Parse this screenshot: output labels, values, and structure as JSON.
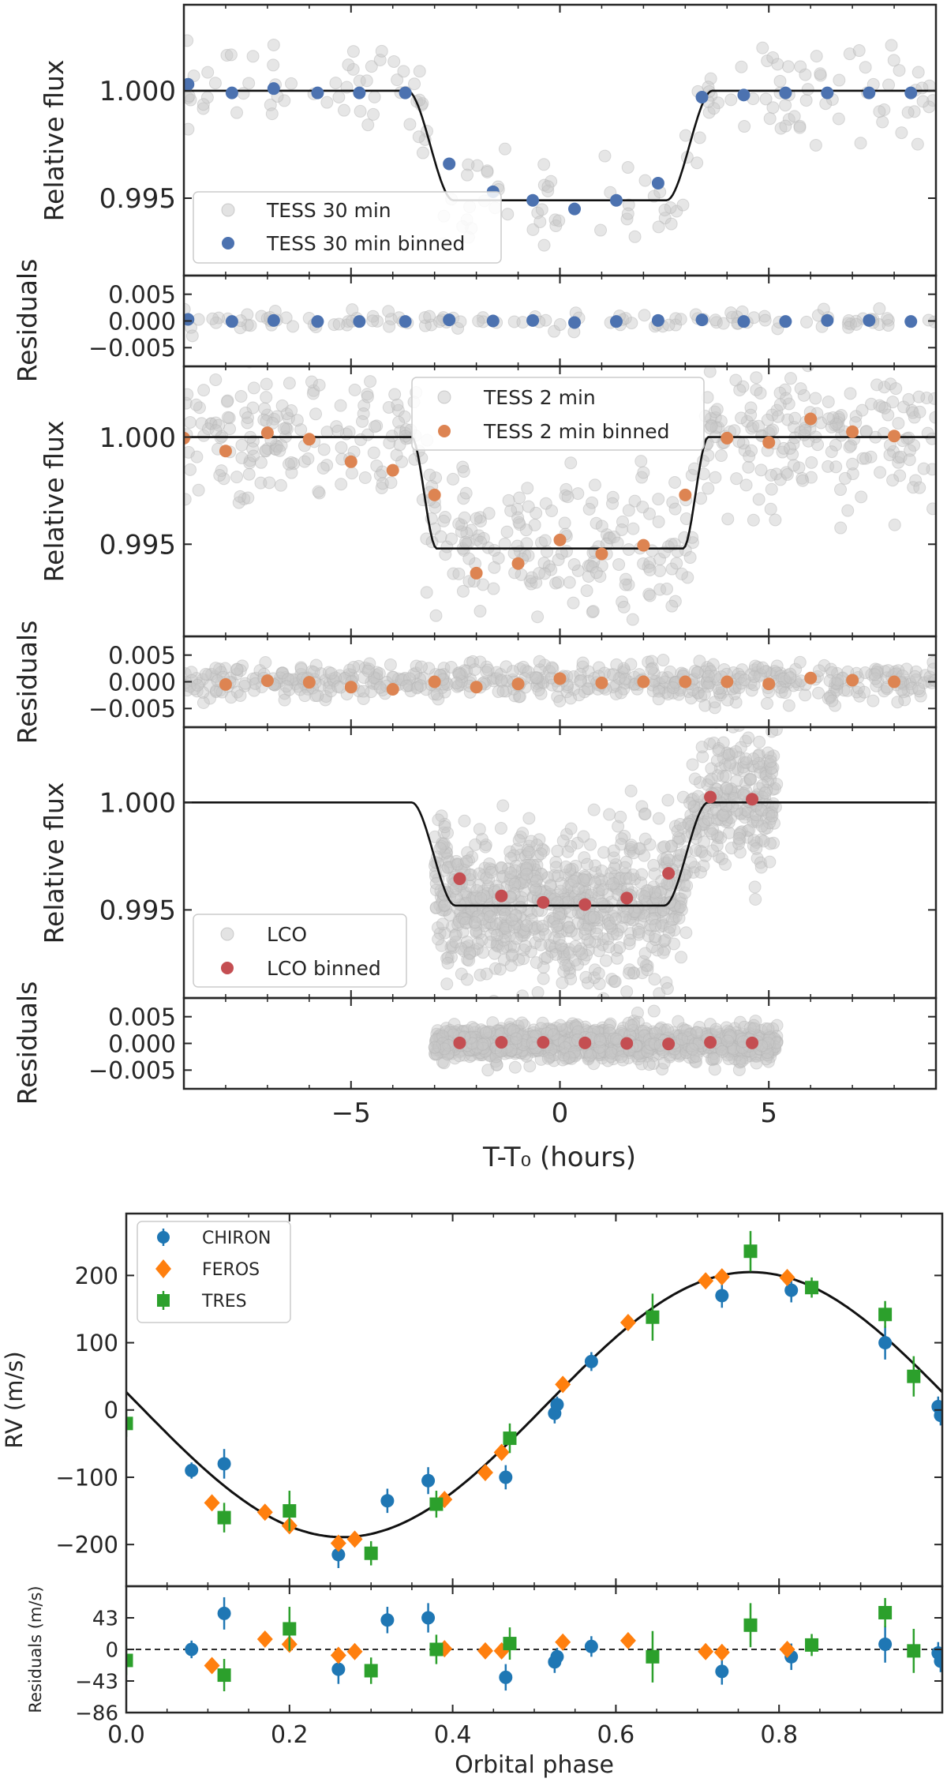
{
  "colors": {
    "tess30": "#4c72b0",
    "tess2": "#dd8452",
    "lco": "#c44e52",
    "raw": "#c8c8c8",
    "chiron": "#1f77b4",
    "feros": "#ff7f0e",
    "tres": "#2ca02c",
    "model": "#111111",
    "axis": "#262626"
  },
  "chart_data": [
    {
      "type": "scatter",
      "id": "tess30-lc",
      "ylabel": "Relative flux",
      "xlim": [
        -9,
        9
      ],
      "ylim": [
        0.9914,
        1.004
      ],
      "ytick_values": [
        0.995,
        1.0
      ],
      "ytick_labels": [
        "0.995",
        "1.000"
      ],
      "model": {
        "depth": 0.0051,
        "t1": 3.65,
        "t2": 2.55
      },
      "raw": {
        "name": "TESS 30 min",
        "count": 180,
        "noise": 0.0011,
        "xrange": [
          -9,
          9
        ]
      },
      "binned": {
        "name": "TESS 30 min binned",
        "x": [
          -8.9,
          -7.85,
          -6.85,
          -5.8,
          -4.8,
          -3.7,
          -2.65,
          -1.6,
          -0.65,
          0.35,
          1.35,
          2.35,
          3.4,
          4.4,
          5.4,
          6.4,
          7.4,
          8.4
        ],
        "y": [
          1.0003,
          0.9999,
          1.0001,
          0.9999,
          0.9999,
          0.9999,
          0.9966,
          0.9953,
          0.9949,
          0.9945,
          0.9949,
          0.9957,
          0.9997,
          0.9998,
          0.9999,
          0.9999,
          0.9999,
          0.9999
        ]
      },
      "legend": {
        "position": "lower-left",
        "entries": [
          "TESS 30 min",
          "TESS 30 min binned"
        ]
      }
    },
    {
      "type": "scatter",
      "id": "tess30-res",
      "ylabel": "Residuals",
      "xlim": [
        -9,
        9
      ],
      "ylim": [
        -0.0085,
        0.0085
      ],
      "ytick_values": [
        -0.005,
        0.0,
        0.005
      ],
      "ytick_labels": [
        "−0.005",
        "0.000",
        "0.005"
      ],
      "raw": {
        "count": 120,
        "noise": 0.0008
      },
      "binned": {
        "x": [
          -8.9,
          -7.85,
          -6.85,
          -5.8,
          -4.8,
          -3.7,
          -2.65,
          -1.6,
          -0.65,
          0.35,
          1.35,
          2.35,
          3.4,
          4.4,
          5.4,
          6.4,
          7.4,
          8.4
        ],
        "y": [
          0.0003,
          -0.0001,
          0.0001,
          -0.0001,
          -0.0001,
          -0.0001,
          0.0002,
          0.0,
          0.0001,
          -0.0003,
          -0.0001,
          0.0001,
          0.0002,
          -0.0001,
          -0.0001,
          0.0001,
          0.0001,
          -0.0001
        ]
      }
    },
    {
      "type": "scatter",
      "id": "tess2-lc",
      "ylabel": "Relative flux",
      "xlim": [
        -9,
        9
      ],
      "ylim": [
        0.9907,
        1.0033
      ],
      "ytick_values": [
        0.995,
        1.0
      ],
      "ytick_labels": [
        "0.995",
        "1.000"
      ],
      "model": {
        "depth": 0.0052,
        "t1": 3.55,
        "t2": 2.95
      },
      "raw": {
        "name": "TESS 2 min",
        "count": 560,
        "noise": 0.0016,
        "xrange": [
          -9,
          9
        ]
      },
      "binned": {
        "name": "TESS 2 min binned",
        "x": [
          -9.0,
          -8.0,
          -7.0,
          -6.0,
          -5.0,
          -4.0,
          -3.0,
          -2.0,
          -1.0,
          0.0,
          1.0,
          2.0,
          3.0,
          4.0,
          5.0,
          6.0,
          7.0,
          8.0
        ],
        "y": [
          0.99995,
          0.99935,
          1.0002,
          0.9999,
          0.99885,
          0.99845,
          0.9973,
          0.99365,
          0.9941,
          0.9952,
          0.99455,
          0.99495,
          0.9973,
          0.99995,
          0.99975,
          1.00085,
          1.00025,
          1.00005
        ]
      },
      "legend": {
        "position": "upper-center",
        "entries": [
          "TESS 2 min",
          "TESS 2 min binned"
        ]
      }
    },
    {
      "type": "scatter",
      "id": "tess2-res",
      "ylabel": "Residuals",
      "xlim": [
        -9,
        9
      ],
      "ylim": [
        -0.0085,
        0.0085
      ],
      "ytick_values": [
        -0.005,
        0.0,
        0.005
      ],
      "ytick_labels": [
        "−0.005",
        "0.000",
        "0.005"
      ],
      "raw": {
        "count": 560,
        "noise": 0.0017
      },
      "binned": {
        "x": [
          -8.0,
          -7.0,
          -6.0,
          -5.0,
          -4.0,
          -3.0,
          -2.0,
          -1.0,
          0.0,
          1.0,
          2.0,
          3.0,
          4.0,
          5.0,
          6.0,
          7.0,
          8.0
        ],
        "y": [
          -0.0005,
          0.0002,
          -0.0001,
          -0.001,
          -0.0014,
          0.0,
          -0.001,
          -0.0004,
          0.0006,
          -0.0002,
          0.0,
          0.0,
          0.0,
          -0.0004,
          0.0007,
          0.0003,
          0.0
        ]
      }
    },
    {
      "type": "scatter",
      "id": "lco-lc",
      "ylabel": "Relative flux",
      "xlim": [
        -9,
        9
      ],
      "ylim": [
        0.9909,
        1.0035
      ],
      "ytick_values": [
        0.995,
        1.0
      ],
      "ytick_labels": [
        "0.995",
        "1.000"
      ],
      "xtick_values": [
        -5,
        0,
        5
      ],
      "model": {
        "depth": 0.0048,
        "t1": 3.55,
        "t2": 2.5
      },
      "raw": {
        "name": "LCO",
        "count": 1100,
        "noise": 0.0017,
        "xrange": [
          -3,
          5.2
        ]
      },
      "binned": {
        "name": "LCO binned",
        "x": [
          -2.4,
          -1.4,
          -0.4,
          0.6,
          1.6,
          2.6,
          3.6,
          4.6
        ],
        "y": [
          0.99645,
          0.99565,
          0.99535,
          0.99525,
          0.99555,
          0.9967,
          1.00025,
          1.00015
        ]
      },
      "legend": {
        "position": "lower-left",
        "entries": [
          "LCO",
          "LCO binned"
        ]
      }
    },
    {
      "type": "scatter",
      "id": "lco-res",
      "ylabel": "Residuals",
      "xlim": [
        -9,
        9
      ],
      "ylim": [
        -0.0085,
        0.0085
      ],
      "ytick_values": [
        -0.005,
        0.0,
        0.005
      ],
      "ytick_labels": [
        "−0.005",
        "0.000",
        "0.005"
      ],
      "xtick_values": [
        -5,
        0,
        5
      ],
      "xtick_labels": [
        "−5",
        "0",
        "5"
      ],
      "xlabel": "T-T₀ (hours)",
      "raw": {
        "count": 1100,
        "noise": 0.0016,
        "xrange": [
          -3,
          5.2
        ]
      },
      "binned": {
        "x": [
          -2.4,
          -1.4,
          -0.4,
          0.6,
          1.6,
          2.6,
          3.6,
          4.6
        ],
        "y": [
          0.0001,
          0.0002,
          0.0002,
          0.0001,
          0.0,
          -0.0001,
          0.0002,
          0.0001
        ]
      }
    },
    {
      "type": "scatter",
      "id": "rv",
      "ylabel": "RV (m/s)",
      "xlim": [
        0.0,
        1.0
      ],
      "ylim": [
        -262,
        292
      ],
      "ytick_values": [
        -200,
        -100,
        0,
        100,
        200
      ],
      "ytick_labels": [
        "−200",
        "−100",
        "0",
        "100",
        "200"
      ],
      "model": {
        "amplitude": 197,
        "offset": 8,
        "phase_max": 0.765
      },
      "series": [
        {
          "name": "CHIRON",
          "marker": "circle",
          "x": [
            0.08,
            0.12,
            0.26,
            0.32,
            0.37,
            0.465,
            0.525,
            0.528,
            0.57,
            0.73,
            0.815,
            0.93,
            0.995,
            0.998
          ],
          "y": [
            -90,
            -80,
            -215,
            -135,
            -105,
            -100,
            -5,
            8,
            72,
            170,
            178,
            100,
            5,
            -8
          ],
          "err": [
            12,
            22,
            20,
            18,
            20,
            18,
            15,
            12,
            14,
            18,
            18,
            25,
            15,
            15
          ]
        },
        {
          "name": "FEROS",
          "marker": "diamond",
          "x": [
            0.105,
            0.17,
            0.2,
            0.26,
            0.28,
            0.39,
            0.44,
            0.46,
            0.535,
            0.615,
            0.71,
            0.73,
            0.81
          ],
          "y": [
            -138,
            -152,
            -172,
            -198,
            -192,
            -133,
            -93,
            -63,
            38,
            130,
            192,
            198,
            197
          ],
          "err": [
            8,
            8,
            8,
            8,
            8,
            8,
            8,
            8,
            8,
            8,
            8,
            8,
            8
          ]
        },
        {
          "name": "TRES",
          "marker": "square",
          "x": [
            0.0,
            0.12,
            0.2,
            0.3,
            0.38,
            0.47,
            0.645,
            0.765,
            0.84,
            0.93,
            0.965
          ],
          "y": [
            -20,
            -160,
            -150,
            -213,
            -140,
            -42,
            138,
            236,
            182,
            142,
            50
          ],
          "err": [
            20,
            22,
            30,
            18,
            20,
            22,
            35,
            30,
            15,
            20,
            30
          ]
        }
      ],
      "legend": {
        "position": "upper-left",
        "entries": [
          "CHIRON",
          "FEROS",
          "TRES"
        ]
      }
    },
    {
      "type": "scatter",
      "id": "rv-res",
      "ylabel": "Residuals (m/s)",
      "xlabel": "Orbital phase",
      "xlim": [
        0.0,
        1.0
      ],
      "ylim": [
        -86,
        86
      ],
      "ytick_values": [
        -86,
        -43,
        0,
        43
      ],
      "ytick_labels": [
        "−86",
        "−43",
        "0",
        "43"
      ],
      "xtick_values": [
        0.0,
        0.2,
        0.4,
        0.6,
        0.8
      ],
      "xtick_labels": [
        "0.0",
        "0.2",
        "0.4",
        "0.6",
        "0.8"
      ],
      "series": [
        {
          "name": "CHIRON",
          "marker": "circle",
          "x": [
            0.08,
            0.12,
            0.26,
            0.32,
            0.37,
            0.465,
            0.525,
            0.528,
            0.57,
            0.73,
            0.815,
            0.93,
            0.995,
            0.998
          ],
          "y": [
            0,
            49,
            -27,
            40,
            43,
            -38,
            -17,
            -10,
            4,
            -30,
            -10,
            7,
            -5,
            -16
          ],
          "err": [
            12,
            22,
            20,
            18,
            20,
            18,
            15,
            12,
            14,
            18,
            18,
            25,
            15,
            15
          ]
        },
        {
          "name": "FEROS",
          "marker": "diamond",
          "x": [
            0.105,
            0.17,
            0.2,
            0.26,
            0.28,
            0.39,
            0.44,
            0.46,
            0.535,
            0.615,
            0.71,
            0.73,
            0.81
          ],
          "y": [
            -22,
            14,
            7,
            -8,
            -3,
            1,
            -2,
            -2,
            10,
            12,
            -3,
            -4,
            0
          ],
          "err": [
            8,
            8,
            8,
            8,
            8,
            8,
            8,
            8,
            8,
            8,
            8,
            8,
            8
          ]
        },
        {
          "name": "TRES",
          "marker": "square",
          "x": [
            0.0,
            0.12,
            0.2,
            0.3,
            0.38,
            0.47,
            0.645,
            0.765,
            0.84,
            0.93,
            0.965
          ],
          "y": [
            -15,
            -35,
            28,
            -29,
            0,
            8,
            -10,
            33,
            6,
            50,
            -2
          ],
          "err": [
            20,
            22,
            30,
            18,
            20,
            22,
            35,
            30,
            15,
            20,
            30
          ]
        }
      ]
    }
  ]
}
